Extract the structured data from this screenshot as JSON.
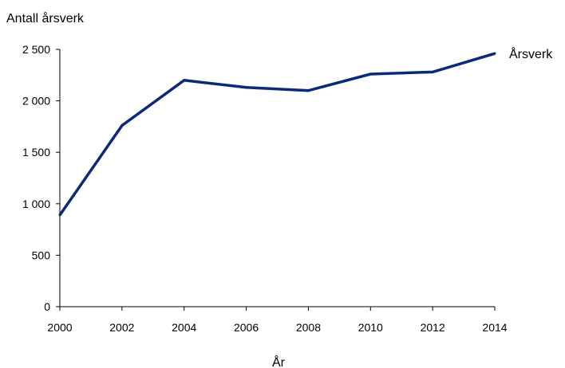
{
  "chart_data": {
    "type": "line",
    "title": "",
    "ylabel": "Antall årsverk",
    "xlabel": "År",
    "x": [
      2000,
      2002,
      2004,
      2006,
      2008,
      2010,
      2012,
      2014
    ],
    "xlim": [
      2000,
      2014
    ],
    "ylim": [
      0,
      2500
    ],
    "y_ticks": [
      0,
      500,
      1000,
      1500,
      2000,
      2500
    ],
    "y_tick_labels": [
      "0",
      "500",
      "1 000",
      "1 500",
      "2 000",
      "2 500"
    ],
    "x_tick_labels": [
      "2000",
      "2002",
      "2004",
      "2006",
      "2008",
      "2010",
      "2012",
      "2014"
    ],
    "grid": false,
    "series": [
      {
        "name": "Årsverk",
        "color": "#0b2a7a",
        "values": [
          890,
          1760,
          2200,
          2130,
          2100,
          2260,
          2280,
          2460
        ]
      }
    ]
  }
}
